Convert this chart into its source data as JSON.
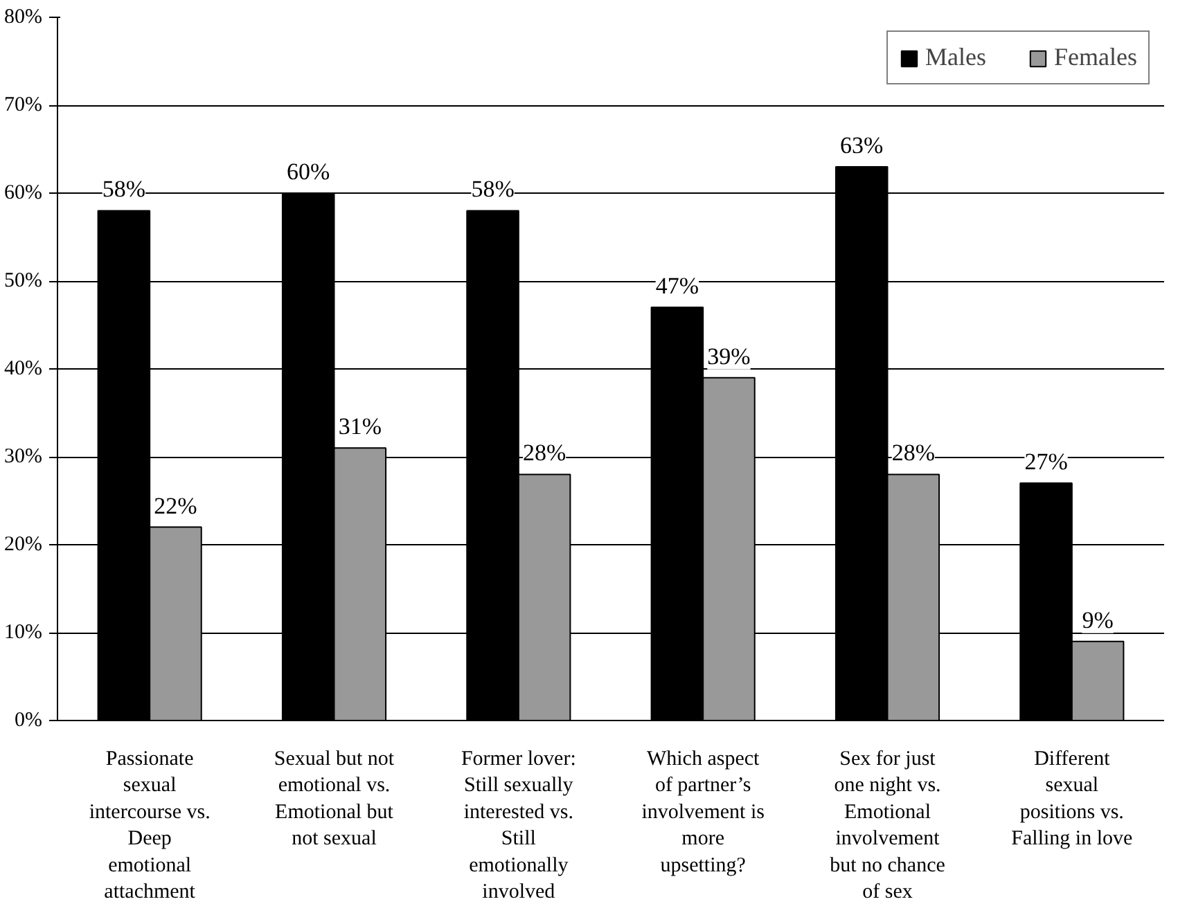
{
  "chart_data": {
    "type": "bar",
    "categories": [
      "Passionate\nsexual\nintercourse vs.\nDeep\nemotional\nattachment",
      "Sexual but not\nemotional vs.\nEmotional but\nnot sexual",
      "Former lover:\nStill sexually\ninterested vs.\nStill\nemotionally\ninvolved",
      "Which aspect\nof partner’s\ninvolvement is\nmore\nupsetting?",
      "Sex for just\none night vs.\nEmotional\ninvolvement\nbut no chance\nof sex",
      "Different\nsexual\npositions vs.\nFalling in love"
    ],
    "series": [
      {
        "name": "Males",
        "color": "#000000",
        "values": [
          58,
          60,
          58,
          47,
          63,
          27
        ],
        "value_labels": [
          "58%",
          "60%",
          "58%",
          "47%",
          "63%",
          "27%"
        ]
      },
      {
        "name": "Females",
        "color": "#999999",
        "values": [
          22,
          31,
          28,
          39,
          28,
          9
        ],
        "value_labels": [
          "22%",
          "31%",
          "28%",
          "39%",
          "28%",
          "9%"
        ]
      }
    ],
    "ylim": [
      0,
      80
    ],
    "yticks": [
      {
        "value": 0,
        "label": "0%"
      },
      {
        "value": 10,
        "label": "10%"
      },
      {
        "value": 20,
        "label": "20%"
      },
      {
        "value": 30,
        "label": "30%"
      },
      {
        "value": 40,
        "label": "40%"
      },
      {
        "value": 50,
        "label": "50%"
      },
      {
        "value": 60,
        "label": "60%"
      },
      {
        "value": 70,
        "label": "70%"
      },
      {
        "value": 80,
        "label": "80%"
      }
    ],
    "grid": "y",
    "legend": "top right"
  }
}
